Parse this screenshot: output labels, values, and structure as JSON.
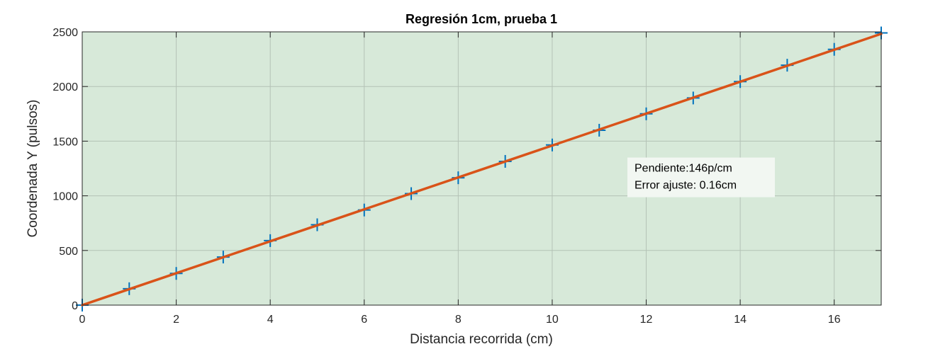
{
  "chart_data": {
    "type": "scatter",
    "title": "Regresión 1cm, prueba 1",
    "xlabel": "Distancia recorrida (cm)",
    "ylabel": "Coordenada Y (pulsos)",
    "xlim": [
      0,
      17
    ],
    "ylim": [
      0,
      2500
    ],
    "xticks": [
      0,
      2,
      4,
      6,
      8,
      10,
      12,
      14,
      16
    ],
    "yticks": [
      0,
      500,
      1000,
      1500,
      2000,
      2500
    ],
    "grid": true,
    "series": [
      {
        "type": "scatter",
        "marker": "+",
        "x": [
          0,
          1,
          2,
          3,
          4,
          5,
          6,
          7,
          8,
          9,
          10,
          11,
          12,
          13,
          14,
          15,
          16,
          17
        ],
        "y": [
          0,
          150,
          290,
          440,
          590,
          735,
          870,
          1020,
          1165,
          1315,
          1465,
          1600,
          1750,
          1895,
          2045,
          2195,
          2340,
          2490
        ]
      },
      {
        "type": "line",
        "x": [
          0,
          17
        ],
        "y": [
          0,
          2482
        ]
      }
    ],
    "annotation": {
      "lines": [
        "Pendiente:146p/cm",
        "Error ajuste: 0.16cm"
      ],
      "x": 11.6,
      "y": 1175
    },
    "colors": {
      "background": "#d7e9d9",
      "markers": "#0072bd",
      "fit_line": "#d95319",
      "grid": "#b4c2b6",
      "axes": "#262626"
    }
  }
}
